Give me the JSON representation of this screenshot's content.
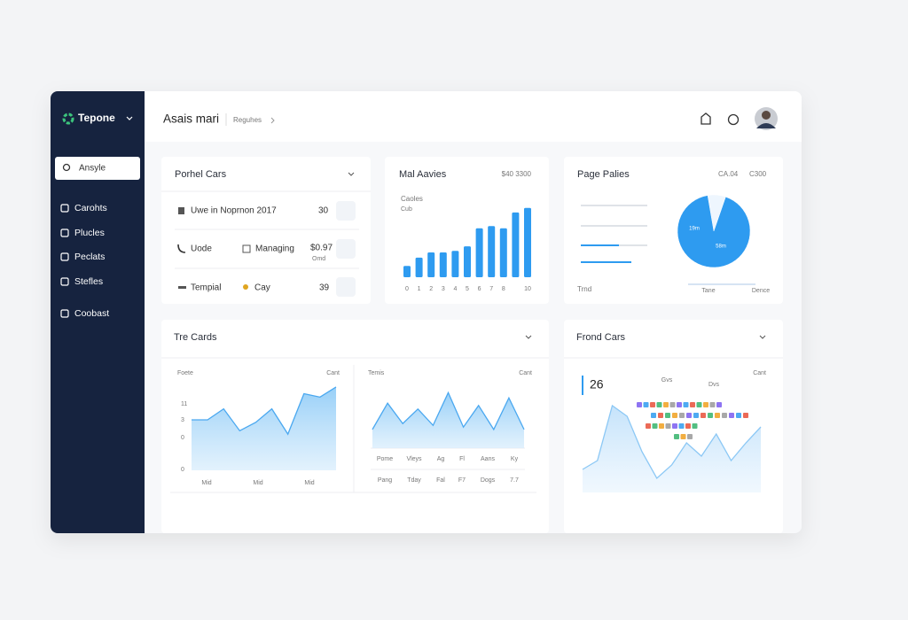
{
  "sidebar": {
    "brand": "Tepone",
    "search": "Ansyle",
    "nav": [
      "Carohts",
      "Plucles",
      "Peclats",
      "Stefles",
      "Coobast"
    ]
  },
  "header": {
    "title": "Asais mari",
    "breadcrumb": "Reguhes"
  },
  "cards": {
    "portfolio": {
      "title": "Porhel Cars",
      "rows": [
        [
          "Uwe in Noprnon 2017",
          "30"
        ],
        [
          "Uode",
          "Managing",
          "$0.97",
          "Omd"
        ],
        [
          "Tempial",
          "Cay",
          "39"
        ]
      ]
    },
    "market": {
      "title": "Mal Aavies",
      "meta": "$40 3300",
      "label": "Caoles",
      "sublabel": "Cub"
    },
    "pages": {
      "title": "Page Palies",
      "meta": [
        "CA.04",
        "C300"
      ],
      "footer": [
        "Trnd",
        "Tane",
        "Dence"
      ]
    },
    "trends": {
      "title": "Tre Cards",
      "left": {
        "label": "Foete",
        "meta": "Cant",
        "axis_labels": [
          "11",
          "3",
          "0",
          "0"
        ],
        "x_labels": [
          "Mid",
          "Mid",
          "Mid"
        ]
      },
      "right": {
        "label": "Temis",
        "meta": "Cant",
        "table": [
          [
            "Pome",
            "Vleys",
            "Ag",
            "Fl",
            "Aans",
            "Ky"
          ],
          [
            "Pang",
            "Tday",
            "Fal",
            "F7",
            "Dogs",
            "7.7"
          ]
        ]
      }
    },
    "frond": {
      "title": "Frond Cars",
      "stat": "26",
      "meta": "Cant",
      "tags": [
        "Gvs",
        "Dvs"
      ]
    }
  },
  "chart_data": [
    {
      "type": "bar",
      "categories": [
        "0",
        "1",
        "2",
        "3",
        "4",
        "5",
        "6",
        "7",
        "8",
        null,
        "10"
      ],
      "values": [
        15,
        26,
        33,
        33,
        35,
        41,
        65,
        68,
        65,
        86,
        92
      ],
      "color": "#2e9bf0",
      "ylim": [
        0,
        100
      ]
    },
    {
      "type": "pie",
      "values": [
        8,
        92
      ],
      "colors": [
        "#eef6fe",
        "#2e9bf0"
      ],
      "annotations": [
        "19m",
        "58m"
      ]
    },
    {
      "type": "area",
      "values": [
        60,
        60,
        73,
        47,
        57,
        73,
        43,
        91,
        87,
        99
      ],
      "color": "#4aa8f0",
      "ylim": [
        0,
        100
      ]
    },
    {
      "type": "area",
      "values": [
        32,
        77,
        42,
        67,
        39,
        95,
        36,
        73,
        32,
        86,
        32
      ],
      "color": "#4aa8f0",
      "ylim": [
        0,
        100
      ]
    },
    {
      "type": "area",
      "values": [
        26,
        36,
        98,
        86,
        46,
        16,
        31,
        56,
        41,
        66,
        36,
        56,
        74
      ],
      "color": "#8cc8f5",
      "ylim": [
        0,
        100
      ]
    }
  ]
}
